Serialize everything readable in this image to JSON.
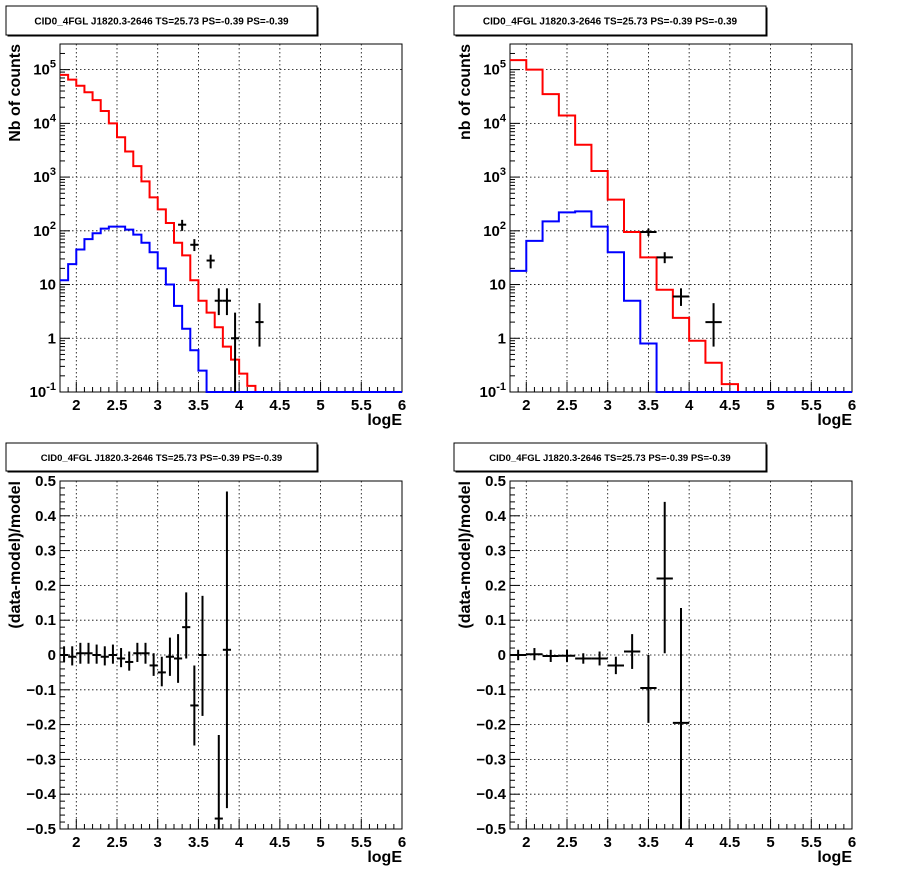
{
  "chart_data": [
    {
      "id": "counts-cid0",
      "type": "histogram",
      "title": "CID0_4FGL J1820.3-2646 TS=25.73 PS=-0.39 PS=-0.39",
      "xlabel": "logE",
      "ylabel": "Nb of counts",
      "xlim": [
        1.8,
        6.0
      ],
      "ylim": [
        0.1,
        300000
      ],
      "yscale": "log",
      "grid": true,
      "x_ticks": [
        "2",
        "2.5",
        "3",
        "3.5",
        "4",
        "4.5",
        "5",
        "5.5",
        "6"
      ],
      "y_ticks": [
        "10^{-1}",
        "1",
        "10",
        "10^{2}",
        "10^{3}",
        "10^{4}",
        "10^{5}"
      ],
      "bin_edges": [
        1.8,
        1.9,
        2.0,
        2.1,
        2.2,
        2.3,
        2.4,
        2.5,
        2.6,
        2.7,
        2.8,
        2.9,
        3.0,
        3.1,
        3.2,
        3.3,
        3.4,
        3.5,
        3.6,
        3.7,
        3.8,
        3.9,
        4.0,
        4.1,
        4.2,
        4.3,
        4.4,
        4.5,
        4.6,
        4.7,
        4.8,
        4.9,
        5.0,
        5.1,
        5.2,
        5.3,
        5.4,
        5.5,
        5.6,
        5.7,
        5.8,
        5.9,
        6.0
      ],
      "series": [
        {
          "color": "#ff0000",
          "values": [
            80000,
            65000,
            50000,
            38000,
            27000,
            17000,
            10000,
            5500,
            3000,
            1600,
            830,
            420,
            250,
            140,
            60,
            35,
            12,
            5,
            3,
            1.6,
            0.7,
            0.4,
            0.22,
            0.13,
            0.1,
            0.1,
            0.1,
            0.1,
            0.1,
            0.1,
            0.1,
            0.1,
            0.1,
            0.1,
            0.1,
            0.1,
            0.1,
            0.1,
            0.1,
            0.1,
            0.1,
            0.1
          ]
        },
        {
          "color": "#0000ff",
          "values": [
            12,
            24,
            45,
            70,
            90,
            110,
            120,
            120,
            105,
            85,
            60,
            40,
            20,
            10,
            4,
            1.5,
            0.6,
            0.25,
            0.1,
            0.1,
            0.1,
            0.1,
            0.1,
            0.1,
            0.1,
            0.1,
            0.1,
            0.1,
            0.1,
            0.1,
            0.1,
            0.1,
            0.1,
            0.1,
            0.1,
            0.1,
            0.1,
            0.1,
            0.1,
            0.1,
            0.1,
            0.1
          ]
        }
      ],
      "points": [
        {
          "x": 3.3,
          "xerr": 0.05,
          "y": 130,
          "ylo": 100,
          "yhi": 160
        },
        {
          "x": 3.45,
          "xerr": 0.05,
          "y": 55,
          "ylo": 42,
          "yhi": 70
        },
        {
          "x": 3.65,
          "xerr": 0.05,
          "y": 28,
          "ylo": 20,
          "yhi": 36
        },
        {
          "x": 3.75,
          "xerr": 0.05,
          "y": 5,
          "ylo": 2.7,
          "yhi": 8.5
        },
        {
          "x": 3.85,
          "xerr": 0.05,
          "y": 5,
          "ylo": 2.7,
          "yhi": 8.5
        },
        {
          "x": 3.95,
          "xerr": 0.05,
          "y": 1,
          "ylo": 0.1,
          "yhi": 3
        },
        {
          "x": 4.25,
          "xerr": 0.05,
          "y": 2,
          "ylo": 0.7,
          "yhi": 4.5
        }
      ]
    },
    {
      "id": "counts-cid0-wide",
      "type": "histogram",
      "title": "CID0_4FGL J1820.3-2646 TS=25.73 PS=-0.39 PS=-0.39",
      "xlabel": "logE",
      "ylabel": "nb of counts",
      "xlim": [
        1.8,
        6.0
      ],
      "ylim": [
        0.1,
        300000
      ],
      "yscale": "log",
      "grid": true,
      "x_ticks": [
        "2",
        "2.5",
        "3",
        "3.5",
        "4",
        "4.5",
        "5",
        "5.5",
        "6"
      ],
      "y_ticks": [
        "10^{-1}",
        "1",
        "10",
        "10^{2}",
        "10^{3}",
        "10^{4}",
        "10^{5}"
      ],
      "bin_edges": [
        1.8,
        2.0,
        2.2,
        2.4,
        2.6,
        2.8,
        3.0,
        3.2,
        3.4,
        3.6,
        3.8,
        4.0,
        4.2,
        4.4,
        4.6,
        4.8,
        5.0,
        5.2,
        5.4,
        5.6,
        5.8,
        6.0
      ],
      "series": [
        {
          "color": "#ff0000",
          "values": [
            150000,
            100000,
            35000,
            14000,
            4000,
            1300,
            380,
            95,
            32,
            8,
            2.4,
            0.9,
            0.35,
            0.14,
            0.1,
            0.1,
            0.1,
            0.1,
            0.1,
            0.1,
            0.1
          ]
        },
        {
          "color": "#0000ff",
          "values": [
            18,
            65,
            150,
            220,
            230,
            120,
            40,
            5,
            0.8,
            0.1,
            0.1,
            0.1,
            0.1,
            0.1,
            0.1,
            0.1,
            0.1,
            0.1,
            0.1,
            0.1,
            0.1
          ]
        }
      ],
      "points": [
        {
          "x": 3.5,
          "xerr": 0.1,
          "y": 95,
          "ylo": 80,
          "yhi": 110
        },
        {
          "x": 3.7,
          "xerr": 0.1,
          "y": 32,
          "ylo": 25,
          "yhi": 40
        },
        {
          "x": 3.9,
          "xerr": 0.1,
          "y": 6,
          "ylo": 4,
          "yhi": 8.5
        },
        {
          "x": 4.3,
          "xerr": 0.1,
          "y": 2,
          "ylo": 0.7,
          "yhi": 4.5
        }
      ]
    },
    {
      "id": "residuals-cid0",
      "type": "scatter",
      "title": "CID0_4FGL J1820.3-2646 TS=25.73 PS=-0.39 PS=-0.39",
      "xlabel": "logE",
      "ylabel": "(data-model)/model",
      "xlim": [
        1.8,
        6.0
      ],
      "ylim": [
        -0.5,
        0.5
      ],
      "grid": true,
      "x_ticks": [
        "2",
        "2.5",
        "3",
        "3.5",
        "4",
        "4.5",
        "5",
        "5.5",
        "6"
      ],
      "y_ticks": [
        "−0.5",
        "−0.4",
        "−0.3",
        "−0.2",
        "−0.1",
        "0",
        "0.1",
        "0.2",
        "0.3",
        "0.4",
        "0.5"
      ],
      "points": [
        {
          "x": 1.85,
          "xerr": 0.05,
          "y": 0.0,
          "ylo": -0.02,
          "yhi": 0.025
        },
        {
          "x": 1.95,
          "xerr": 0.05,
          "y": -0.005,
          "ylo": -0.03,
          "yhi": 0.025
        },
        {
          "x": 2.05,
          "xerr": 0.05,
          "y": 0.005,
          "ylo": -0.025,
          "yhi": 0.035
        },
        {
          "x": 2.15,
          "xerr": 0.05,
          "y": 0.005,
          "ylo": -0.025,
          "yhi": 0.035
        },
        {
          "x": 2.25,
          "xerr": 0.05,
          "y": 0.0,
          "ylo": -0.025,
          "yhi": 0.03
        },
        {
          "x": 2.35,
          "xerr": 0.05,
          "y": -0.005,
          "ylo": -0.03,
          "yhi": 0.025
        },
        {
          "x": 2.45,
          "xerr": 0.05,
          "y": 0.0,
          "ylo": -0.025,
          "yhi": 0.03
        },
        {
          "x": 2.55,
          "xerr": 0.05,
          "y": -0.01,
          "ylo": -0.035,
          "yhi": 0.02
        },
        {
          "x": 2.65,
          "xerr": 0.05,
          "y": -0.02,
          "ylo": -0.045,
          "yhi": 0.01
        },
        {
          "x": 2.75,
          "xerr": 0.05,
          "y": 0.005,
          "ylo": -0.02,
          "yhi": 0.035
        },
        {
          "x": 2.85,
          "xerr": 0.05,
          "y": 0.005,
          "ylo": -0.025,
          "yhi": 0.035
        },
        {
          "x": 2.95,
          "xerr": 0.05,
          "y": -0.03,
          "ylo": -0.06,
          "yhi": 0.005
        },
        {
          "x": 3.05,
          "xerr": 0.05,
          "y": -0.05,
          "ylo": -0.09,
          "yhi": -0.005
        },
        {
          "x": 3.15,
          "xerr": 0.05,
          "y": -0.005,
          "ylo": -0.06,
          "yhi": 0.05
        },
        {
          "x": 3.25,
          "xerr": 0.05,
          "y": -0.01,
          "ylo": -0.08,
          "yhi": 0.06
        },
        {
          "x": 3.35,
          "xerr": 0.05,
          "y": 0.08,
          "ylo": -0.01,
          "yhi": 0.18
        },
        {
          "x": 3.45,
          "xerr": 0.05,
          "y": -0.145,
          "ylo": -0.26,
          "yhi": -0.03
        },
        {
          "x": 3.55,
          "xerr": 0.05,
          "y": 0.0,
          "ylo": -0.175,
          "yhi": 0.17
        },
        {
          "x": 3.75,
          "xerr": 0.05,
          "y": -0.47,
          "ylo": -0.5,
          "yhi": -0.23
        },
        {
          "x": 3.85,
          "xerr": 0.05,
          "y": 0.015,
          "ylo": -0.44,
          "yhi": 0.47
        }
      ]
    },
    {
      "id": "residuals-cid0-wide",
      "type": "scatter",
      "title": "CID0_4FGL J1820.3-2646 TS=25.73 PS=-0.39 PS=-0.39",
      "xlabel": "logE",
      "ylabel": "(data-model)/model",
      "xlim": [
        1.8,
        6.0
      ],
      "ylim": [
        -0.5,
        0.5
      ],
      "grid": true,
      "x_ticks": [
        "2",
        "2.5",
        "3",
        "3.5",
        "4",
        "4.5",
        "5",
        "5.5",
        "6"
      ],
      "y_ticks": [
        "−0.5",
        "−0.4",
        "−0.3",
        "−0.2",
        "−0.1",
        "0",
        "0.1",
        "0.2",
        "0.3",
        "0.4",
        "0.5"
      ],
      "points": [
        {
          "x": 1.9,
          "xerr": 0.1,
          "y": 0.0,
          "ylo": -0.015,
          "yhi": 0.015
        },
        {
          "x": 2.1,
          "xerr": 0.1,
          "y": 0.002,
          "ylo": -0.015,
          "yhi": 0.02
        },
        {
          "x": 2.3,
          "xerr": 0.1,
          "y": -0.003,
          "ylo": -0.02,
          "yhi": 0.015
        },
        {
          "x": 2.5,
          "xerr": 0.1,
          "y": -0.002,
          "ylo": -0.02,
          "yhi": 0.015
        },
        {
          "x": 2.7,
          "xerr": 0.1,
          "y": -0.01,
          "ylo": -0.025,
          "yhi": 0.005
        },
        {
          "x": 2.9,
          "xerr": 0.1,
          "y": -0.01,
          "ylo": -0.03,
          "yhi": 0.01
        },
        {
          "x": 3.1,
          "xerr": 0.1,
          "y": -0.03,
          "ylo": -0.055,
          "yhi": -0.005
        },
        {
          "x": 3.3,
          "xerr": 0.1,
          "y": 0.01,
          "ylo": -0.04,
          "yhi": 0.06
        },
        {
          "x": 3.5,
          "xerr": 0.1,
          "y": -0.095,
          "ylo": -0.195,
          "yhi": 0.0
        },
        {
          "x": 3.7,
          "xerr": 0.1,
          "y": 0.22,
          "ylo": 0.005,
          "yhi": 0.44
        },
        {
          "x": 3.9,
          "xerr": 0.1,
          "y": -0.195,
          "ylo": -0.5,
          "yhi": 0.135
        }
      ]
    }
  ]
}
